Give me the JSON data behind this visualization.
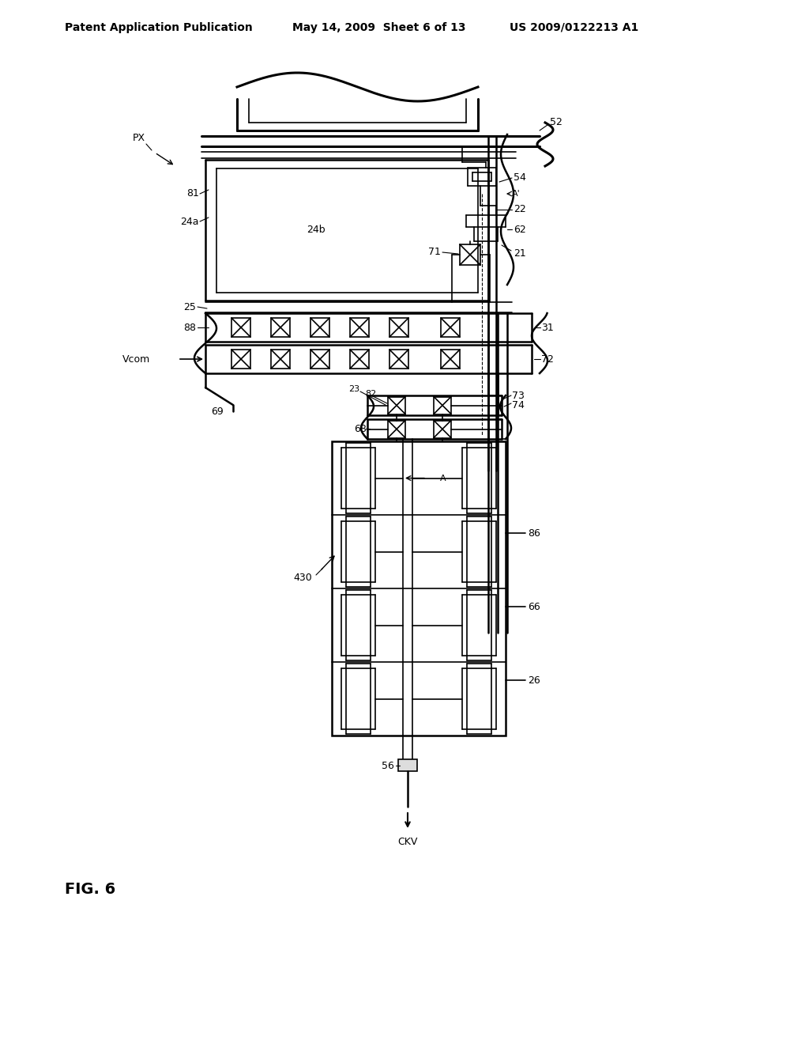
{
  "bg_color": "#ffffff",
  "line_color": "#000000",
  "header_text1": "Patent Application Publication",
  "header_text2": "May 14, 2009  Sheet 6 of 13",
  "header_text3": "US 2009/0122213 A1",
  "fig_label": "FIG. 6"
}
